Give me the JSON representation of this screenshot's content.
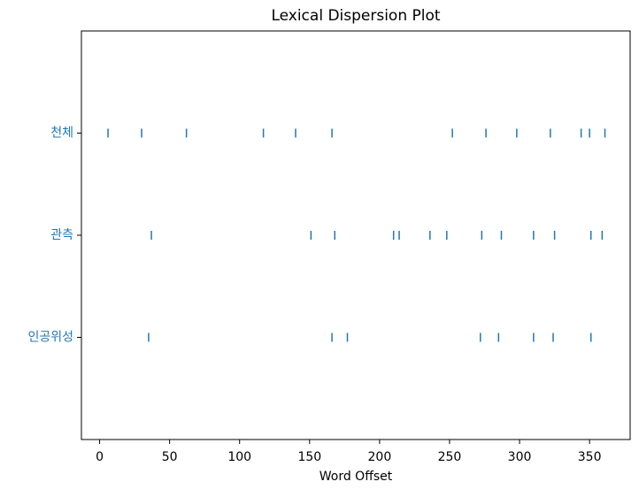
{
  "chart_data": {
    "type": "dispersion",
    "title": "Lexical Dispersion Plot",
    "xlabel": "Word Offset",
    "categories": [
      "천체",
      "관측",
      "인공위성"
    ],
    "x": [
      [
        6,
        30,
        62,
        117,
        140,
        166,
        252,
        276,
        298,
        322,
        344,
        350,
        361
      ],
      [
        37,
        151,
        168,
        210,
        214,
        236,
        248,
        273,
        287,
        310,
        325,
        351,
        359
      ],
      [
        35,
        166,
        177,
        272,
        285,
        310,
        324,
        351
      ]
    ],
    "color": "#1f77b4",
    "xlim": [
      -13,
      379
    ],
    "xticks": [
      0,
      50,
      100,
      150,
      200,
      250,
      300,
      350
    ]
  }
}
